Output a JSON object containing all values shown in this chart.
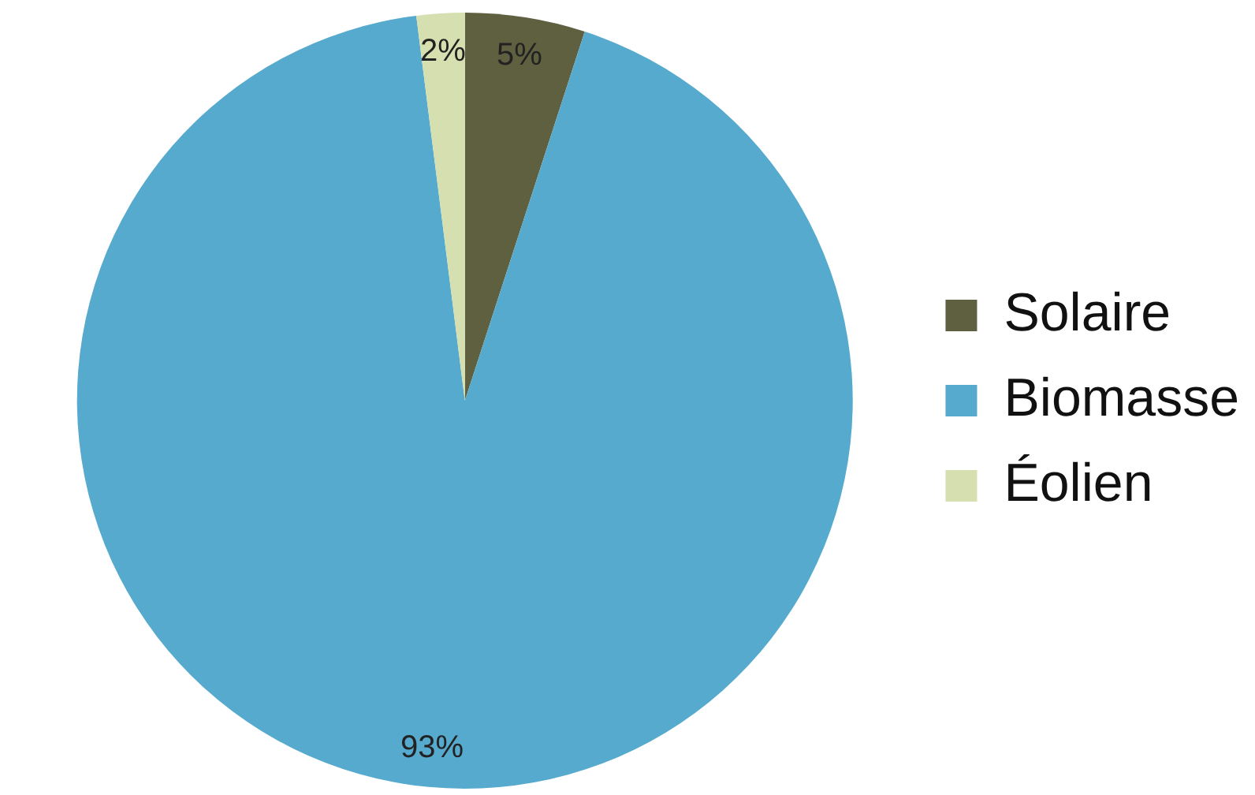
{
  "chart_data": {
    "type": "pie",
    "categories": [
      "Solaire",
      "Biomasse",
      "Éolien"
    ],
    "values": [
      5,
      93,
      2
    ],
    "colors": [
      "#5e6040",
      "#56aacd",
      "#d6dfb0"
    ],
    "value_labels": [
      "5%",
      "93%",
      "2%"
    ],
    "legend": "right"
  }
}
